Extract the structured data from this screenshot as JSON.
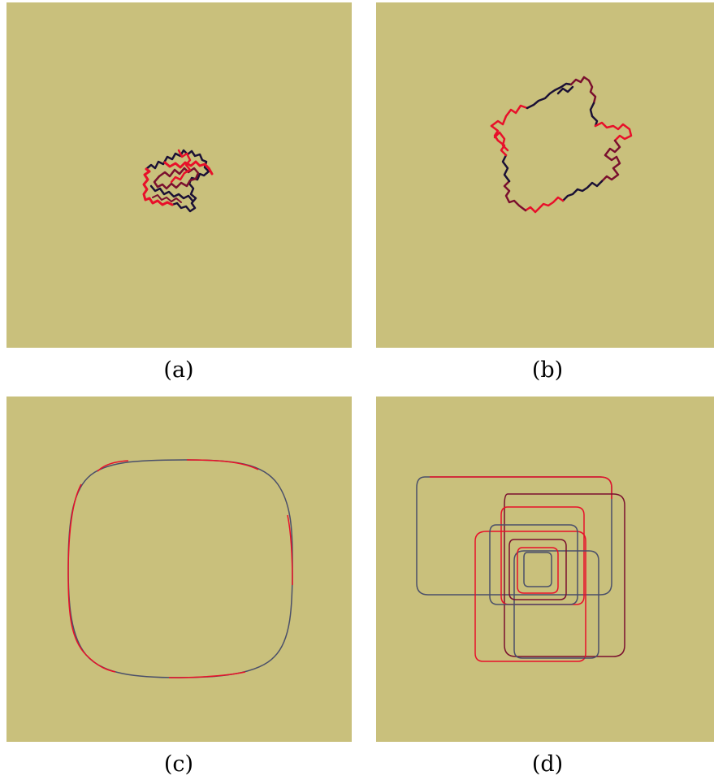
{
  "panels": [
    {
      "id": "a",
      "label": "(a)",
      "kind": "rough-small"
    },
    {
      "id": "b",
      "label": "(b)",
      "kind": "rough-ring"
    },
    {
      "id": "c",
      "label": "(c)",
      "kind": "smooth-rounded-square"
    },
    {
      "id": "d",
      "label": "(d)",
      "kind": "nested-rectangles"
    }
  ],
  "colors": {
    "background": "#c9c07c",
    "red": "#e8102a",
    "dark_red": "#7a0f2e",
    "navy": "#1a1035",
    "slate": "#4a4f6a"
  }
}
